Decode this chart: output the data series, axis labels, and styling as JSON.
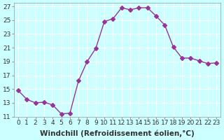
{
  "x": [
    0,
    1,
    2,
    3,
    4,
    5,
    6,
    7,
    8,
    9,
    10,
    11,
    12,
    13,
    14,
    15,
    16,
    17,
    18,
    19,
    20,
    21,
    22,
    23
  ],
  "y": [
    14.8,
    13.5,
    13.0,
    13.1,
    12.7,
    11.4,
    11.5,
    16.2,
    19.0,
    20.9,
    24.8,
    25.2,
    26.8,
    26.5,
    26.8,
    26.8,
    25.6,
    24.3,
    21.1,
    19.5,
    19.5,
    19.1,
    18.7,
    18.8
  ],
  "line_color": "#993399",
  "marker": "D",
  "marker_size": 3,
  "bg_color": "#ccffff",
  "grid_color": "#ffffff",
  "xlabel": "Windchill (Refroidissement éolien,°C)",
  "xlim": [
    -0.5,
    23.5
  ],
  "ylim": [
    11,
    27.5
  ],
  "yticks": [
    11,
    13,
    15,
    17,
    19,
    21,
    23,
    25,
    27
  ],
  "xticks": [
    0,
    1,
    2,
    3,
    4,
    5,
    6,
    7,
    8,
    9,
    10,
    11,
    12,
    13,
    14,
    15,
    16,
    17,
    18,
    19,
    20,
    21,
    22,
    23
  ],
  "tick_fontsize": 6.5,
  "xlabel_fontsize": 7.5
}
